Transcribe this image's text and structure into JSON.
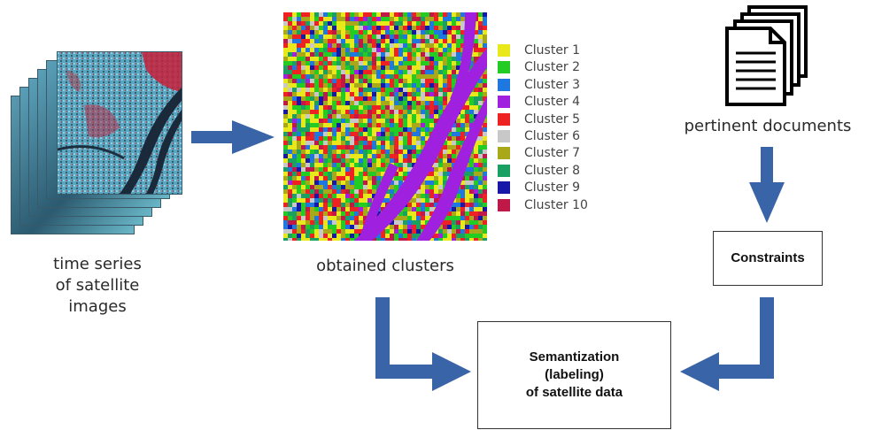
{
  "left": {
    "caption_lines": [
      "time series",
      "of satellite",
      "images"
    ]
  },
  "middle": {
    "caption": "obtained clusters",
    "legend": [
      {
        "label": "Cluster 1",
        "color": "#e8e81a"
      },
      {
        "label": "Cluster 2",
        "color": "#22cc22"
      },
      {
        "label": "Cluster 3",
        "color": "#1e78e0"
      },
      {
        "label": "Cluster 4",
        "color": "#a020e0"
      },
      {
        "label": "Cluster 5",
        "color": "#ee2222"
      },
      {
        "label": "Cluster 6",
        "color": "#c8c8c8"
      },
      {
        "label": "Cluster 7",
        "color": "#a8a818"
      },
      {
        "label": "Cluster 8",
        "color": "#1aa060"
      },
      {
        "label": "Cluster 9",
        "color": "#1818a8"
      },
      {
        "label": "Cluster 10",
        "color": "#c01848"
      }
    ]
  },
  "right": {
    "caption": "pertinent documents",
    "constraints_label": "Constraints"
  },
  "bottom": {
    "label_lines": [
      "Semantization",
      "(labeling)",
      "of satellite data"
    ]
  },
  "colors": {
    "arrow": "#3a64a8",
    "box_border": "#333333"
  }
}
